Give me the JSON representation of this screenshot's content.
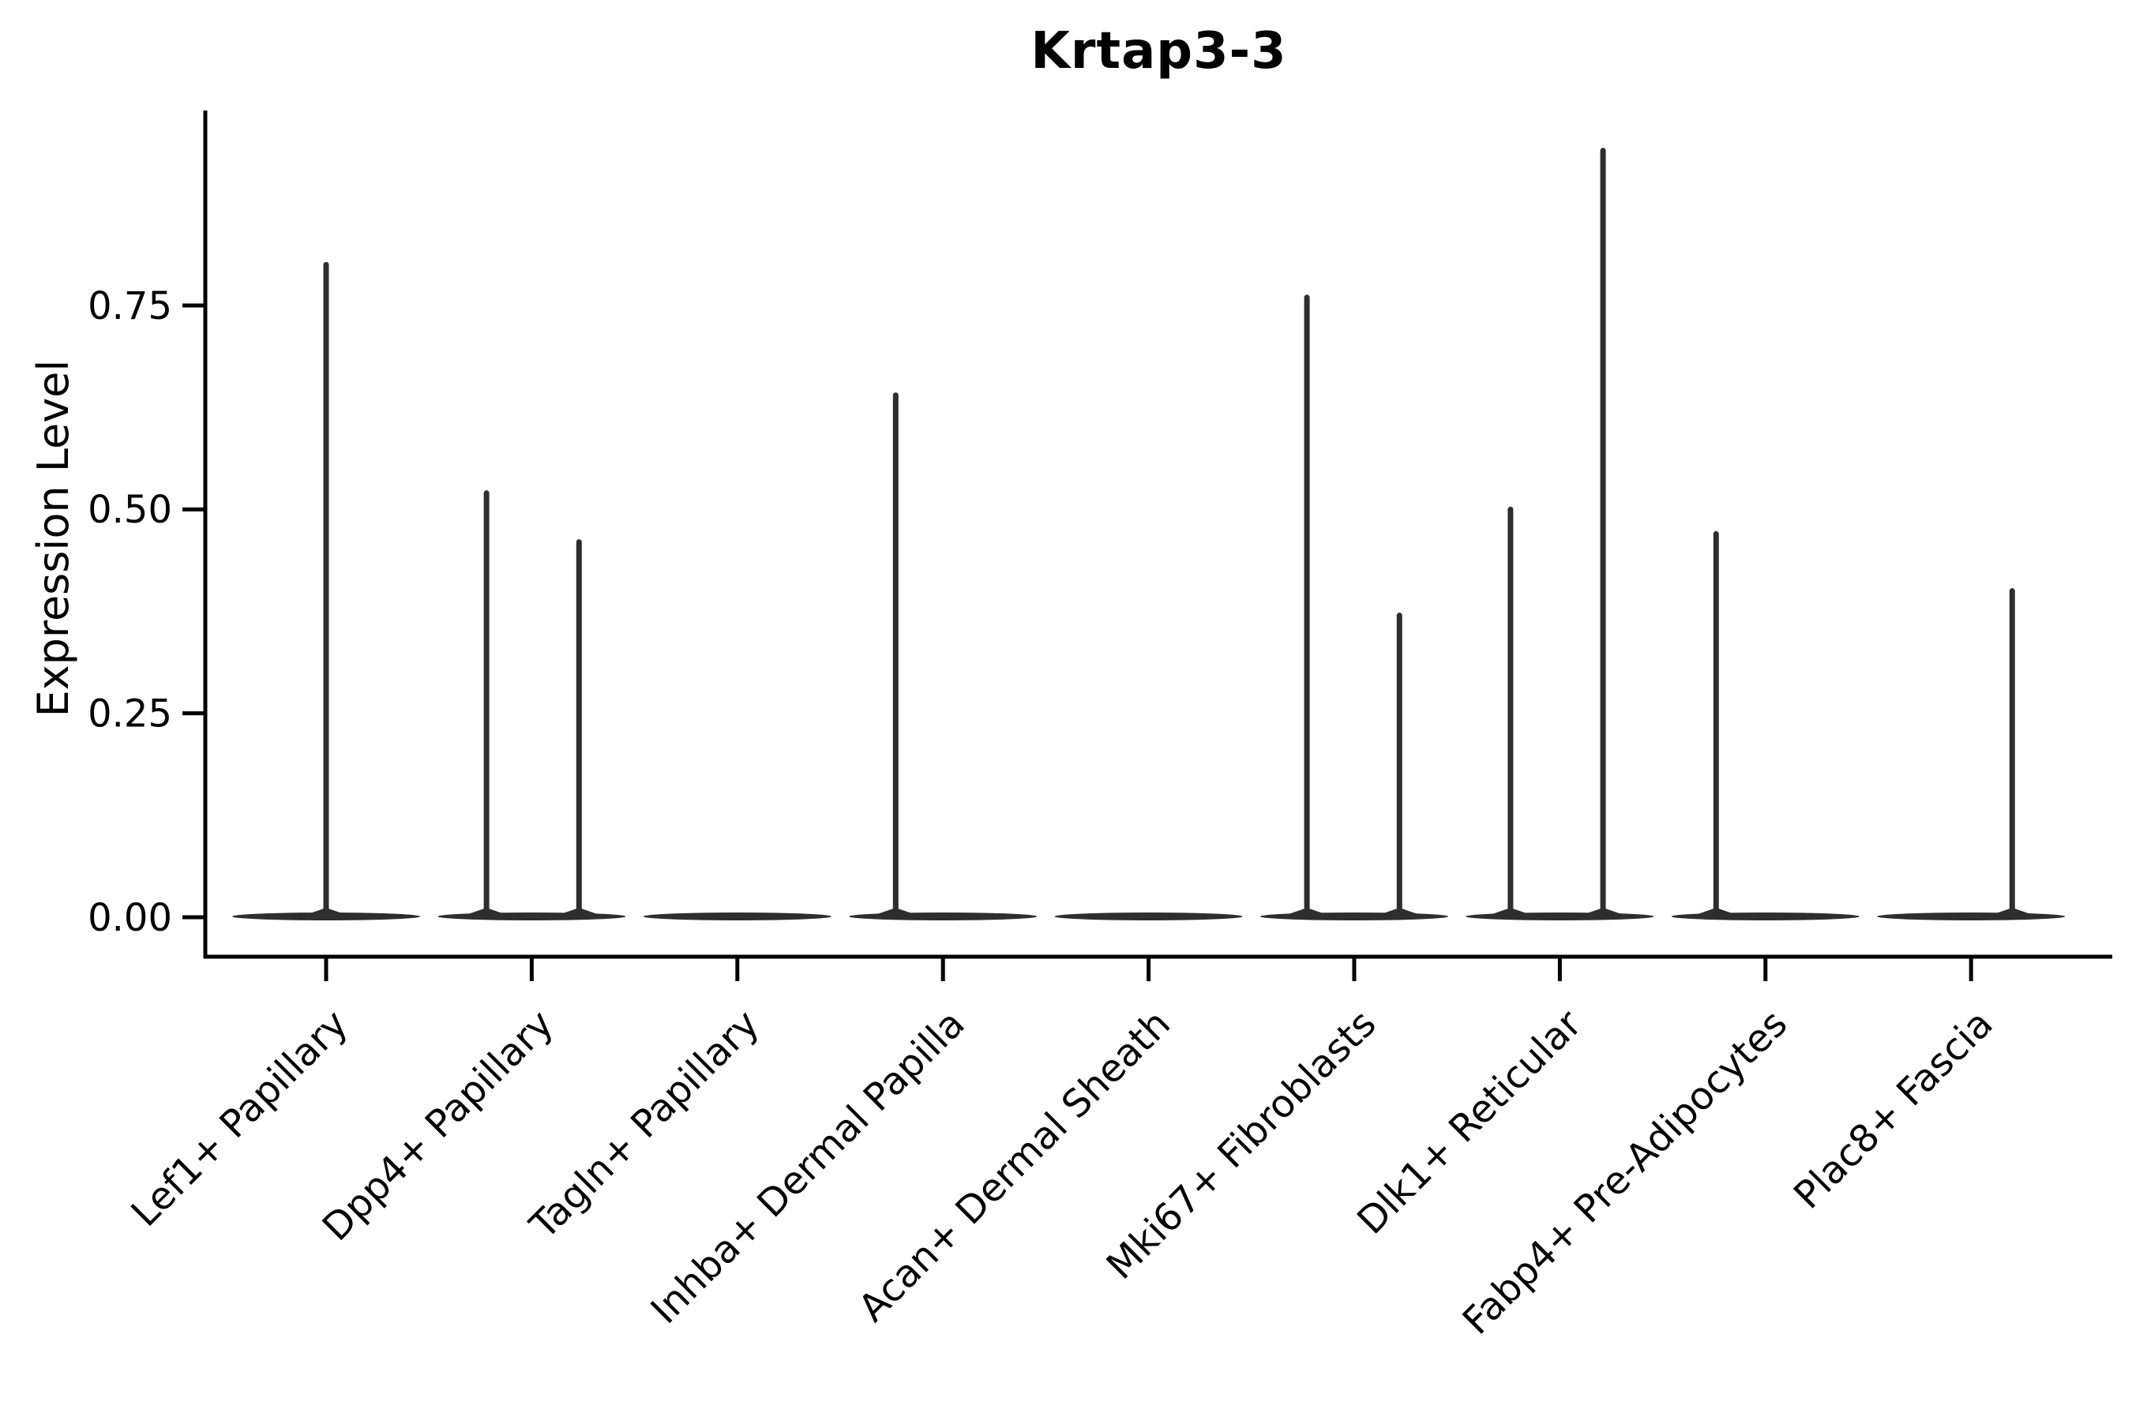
{
  "title": "Krtap3-3",
  "y_axis": {
    "label": "Expression Level",
    "tick_labels": [
      "0.00",
      "0.25",
      "0.50",
      "0.75"
    ],
    "tick_values": [
      0.0,
      0.25,
      0.5,
      0.75
    ]
  },
  "x_axis": {
    "label": "",
    "tick_labels": [
      "Lef1+ Papillary",
      "Dpp4+ Papillary",
      "Tagln+ Papillary",
      "Inhba+ Dermal Papilla",
      "Acan+ Dermal Sheath",
      "Mki67+ Fibroblasts",
      "Dlk1+ Reticular",
      "Fabp4+ Pre-Adipocytes",
      "Plac8+ Fascia"
    ]
  },
  "chart_data": {
    "type": "violin",
    "title": "Krtap3-3",
    "xlabel": "",
    "ylabel": "Expression Level",
    "ylim": [
      0,
      0.99
    ],
    "yticks": [
      0.0,
      0.25,
      0.5,
      0.75
    ],
    "grid": false,
    "legend": "none",
    "spines": [
      "left",
      "bottom"
    ],
    "categories": [
      "Lef1+ Papillary",
      "Dpp4+ Papillary",
      "Tagln+ Papillary",
      "Inhba+ Dermal Papilla",
      "Acan+ Dermal Sheath",
      "Mki67+ Fibroblasts",
      "Dlk1+ Reticular",
      "Fabp4+ Pre-Adipocytes",
      "Plac8+ Fascia"
    ],
    "description": "Each category shows a flattened violin at expression 0 with thin density spikes rising to the maximum expressed values; spike offset is the horizontal position within the group as a fraction of group spacing.",
    "violins": [
      {
        "category": "Lef1+ Papillary",
        "baseline": 0,
        "spikes": [
          {
            "offset": 0.0,
            "value": 0.8
          }
        ]
      },
      {
        "category": "Dpp4+ Papillary",
        "baseline": 0,
        "spikes": [
          {
            "offset": -0.22,
            "value": 0.52
          },
          {
            "offset": 0.23,
            "value": 0.46
          }
        ]
      },
      {
        "category": "Tagln+ Papillary",
        "baseline": 0,
        "spikes": []
      },
      {
        "category": "Inhba+ Dermal Papilla",
        "baseline": 0,
        "spikes": [
          {
            "offset": -0.23,
            "value": 0.64
          }
        ]
      },
      {
        "category": "Acan+ Dermal Sheath",
        "baseline": 0,
        "spikes": []
      },
      {
        "category": "Mki67+ Fibroblasts",
        "baseline": 0,
        "spikes": [
          {
            "offset": -0.23,
            "value": 0.76
          },
          {
            "offset": 0.22,
            "value": 0.37
          }
        ]
      },
      {
        "category": "Dlk1+ Reticular",
        "baseline": 0,
        "spikes": [
          {
            "offset": -0.24,
            "value": 0.5
          },
          {
            "offset": 0.21,
            "value": 0.94
          }
        ]
      },
      {
        "category": "Fabp4+ Pre-Adipocytes",
        "baseline": 0,
        "spikes": [
          {
            "offset": -0.24,
            "value": 0.47
          }
        ]
      },
      {
        "category": "Plac8+ Fascia",
        "baseline": 0,
        "spikes": [
          {
            "offset": 0.2,
            "value": 0.4
          }
        ]
      }
    ],
    "colors": {
      "axis_ink": "#000000",
      "violin_ink": "#2e2e2e",
      "background": "#ffffff"
    }
  }
}
